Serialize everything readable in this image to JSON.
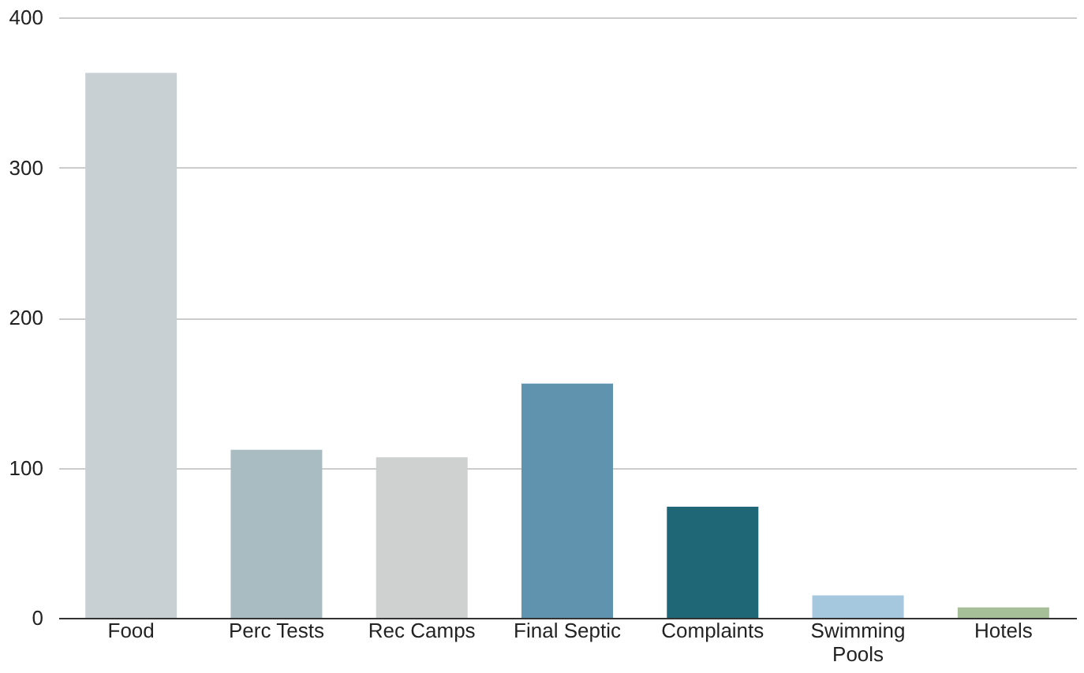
{
  "chart_data": {
    "type": "bar",
    "categories": [
      "Food",
      "Perc Tests",
      "Rec Camps",
      "Final Septic",
      "Complaints",
      "Swimming\nPools",
      "Hotels"
    ],
    "values": [
      363,
      112,
      107,
      156,
      74,
      15,
      7
    ],
    "colors": [
      "#c9d0d3",
      "#a9bcc2",
      "#cfd0d0",
      "#5f93ae",
      "#1f6677",
      "#a6c8df",
      "#a6bf98"
    ],
    "ylim": [
      0,
      400
    ],
    "yticks": [
      0,
      100,
      200,
      300,
      400
    ],
    "grid": "y"
  }
}
